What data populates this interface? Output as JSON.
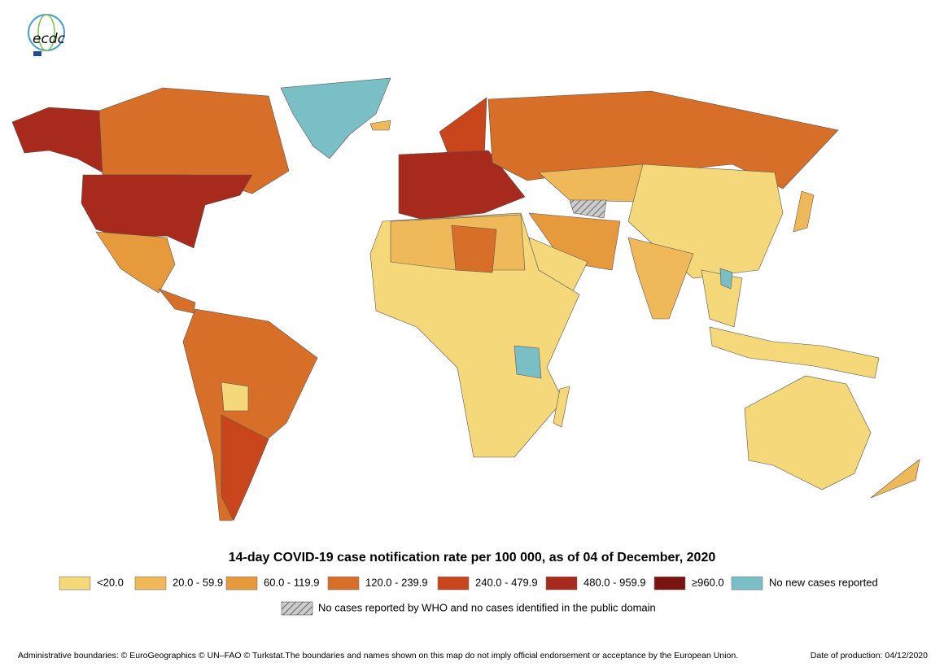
{
  "logo": {
    "text": "ecdc"
  },
  "map": {
    "title": "14-day COVID-19 case notification rate per 100 000,  as of 04 of December, 2020",
    "legend": [
      {
        "label": "<20.0",
        "color": "#f5d87a"
      },
      {
        "label": "20.0 - 59.9",
        "color": "#efb95a"
      },
      {
        "label": "60.0 - 119.9",
        "color": "#e69a3c"
      },
      {
        "label": "120.0 - 239.9",
        "color": "#d86f28"
      },
      {
        "label": "240.0 - 479.9",
        "color": "#c9461c"
      },
      {
        "label": "480.0 - 959.9",
        "color": "#a82a1c"
      },
      {
        "label": "≥960.0",
        "color": "#7a1410"
      },
      {
        "label": "No new cases reported",
        "color": "#7bbfc6"
      }
    ],
    "hatched_legend": {
      "label": "No cases reported by WHO and no cases identified in the public domain"
    }
  },
  "footer": {
    "credits": "Administrative boundaries: © EuroGeographics © UN–FAO © Turkstat.The boundaries and names shown on this map do not imply official endorsement or acceptance by the European Union.",
    "date": "Date of production: 04/12/2020"
  }
}
